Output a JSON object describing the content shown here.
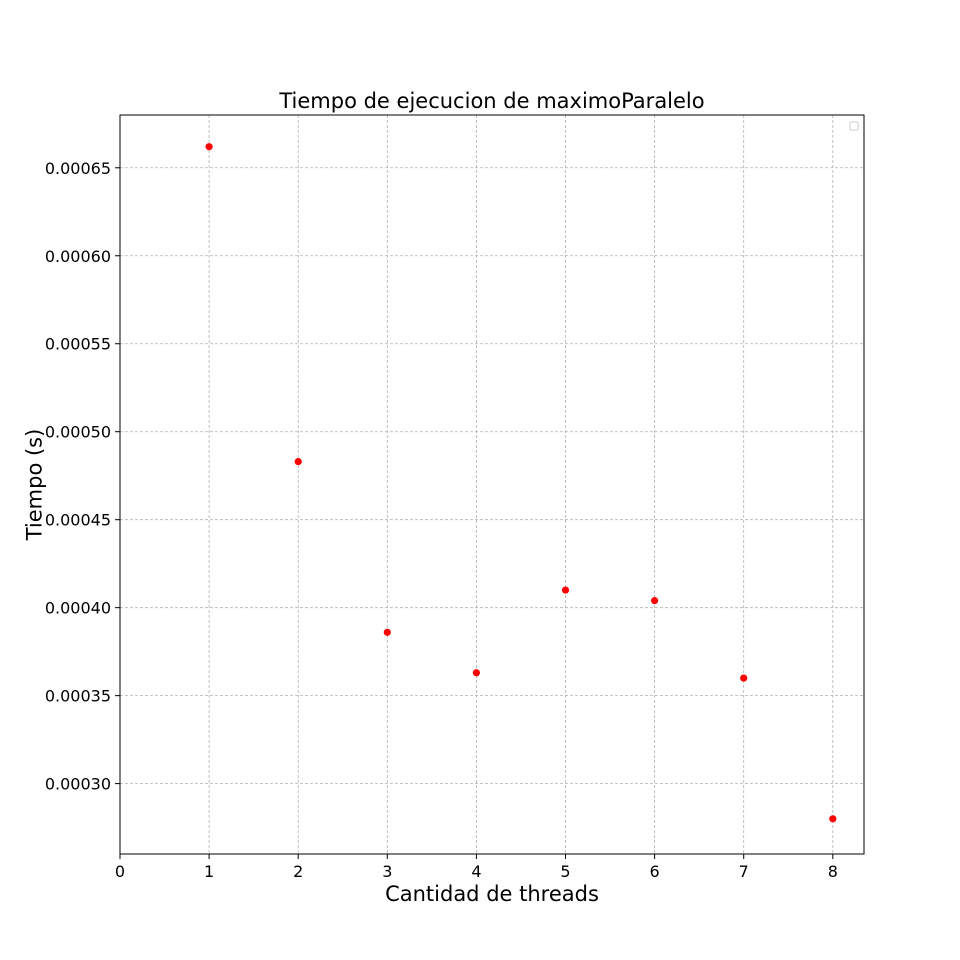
{
  "chart_data": {
    "type": "scatter",
    "title": "Tiempo de ejecucion de maximoParalelo",
    "xlabel": "Cantidad de threads",
    "ylabel": "Tiempo (s)",
    "xlim": [
      0,
      8.35
    ],
    "ylim": [
      0.00026,
      0.00068
    ],
    "x_ticks": [
      0,
      1,
      2,
      3,
      4,
      5,
      6,
      7,
      8
    ],
    "x_tick_labels": [
      "0",
      "1",
      "2",
      "3",
      "4",
      "5",
      "6",
      "7",
      "8"
    ],
    "y_ticks": [
      0.0003,
      0.00035,
      0.0004,
      0.00045,
      0.0005,
      0.00055,
      0.0006,
      0.00065
    ],
    "y_tick_labels": [
      "0.00030",
      "0.00035",
      "0.00040",
      "0.00045",
      "0.00050",
      "0.00055",
      "0.00060",
      "0.00065"
    ],
    "grid": true,
    "legend": "top-right",
    "series": [
      {
        "color": "#ff0000",
        "x": [
          1,
          2,
          3,
          4,
          5,
          6,
          7,
          8
        ],
        "y": [
          0.000662,
          0.000483,
          0.000386,
          0.000363,
          0.00041,
          0.000404,
          0.00036,
          0.00028
        ]
      }
    ]
  }
}
